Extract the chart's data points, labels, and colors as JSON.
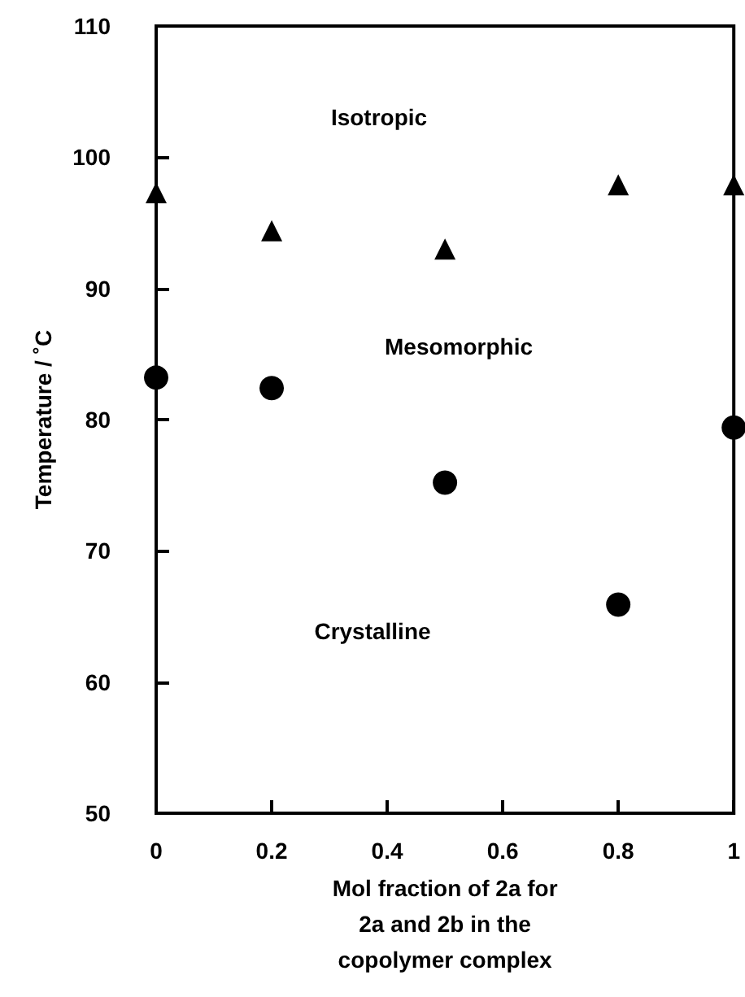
{
  "chart_data": {
    "type": "scatter",
    "xlabel": "Mol fraction of 2a for\n2a and 2b in the\ncopolymer complex",
    "ylabel": "Temperature / ˚C",
    "series": [
      {
        "color": "#000000",
        "marker": "triangle",
        "x": [
          0,
          0.2,
          0.5,
          0.8,
          1
        ],
        "values": [
          97.3,
          94.4,
          93.0,
          97.9,
          97.9
        ]
      },
      {
        "color": "#000000",
        "marker": "circle",
        "x": [
          0,
          0.2,
          0.5,
          0.8,
          1
        ],
        "values": [
          83.2,
          82.4,
          75.2,
          65.9,
          79.4
        ]
      }
    ],
    "xlim": [
      0,
      1
    ],
    "xticks": [
      0,
      0.2,
      0.4,
      0.6,
      0.8,
      1
    ],
    "ylim": [
      50,
      110
    ],
    "yticks": [
      50,
      60,
      70,
      80,
      90,
      100,
      110
    ],
    "annotations": [
      "Isotropic",
      "Mesomorphic",
      "Crystalline"
    ],
    "grid": false
  }
}
